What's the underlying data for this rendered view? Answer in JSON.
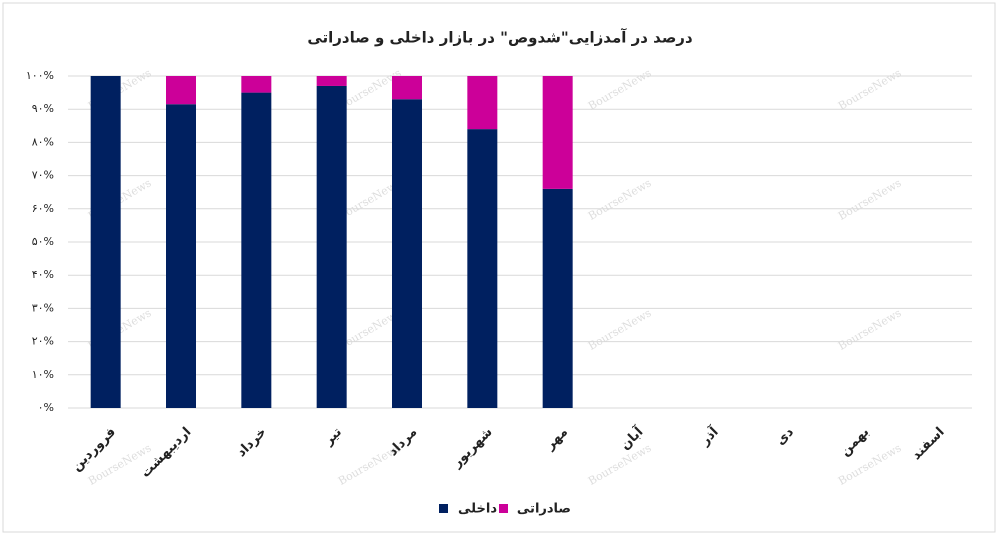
{
  "chart_data": {
    "type": "stacked_bar",
    "title": "درصد در آمدزایی\"شدوص\" در بازار داخلی و صادراتی",
    "categories": [
      "فروردین",
      "اردیبهشت",
      "خرداد",
      "تیر",
      "مرداد",
      "شهریور",
      "مهر",
      "آبان",
      "آذر",
      "دی",
      "بهمن",
      "اسفند"
    ],
    "series": [
      {
        "name": "داخلی",
        "color": "#002060",
        "values": [
          100,
          91.5,
          95,
          97,
          93,
          84,
          66,
          null,
          null,
          null,
          null,
          null
        ]
      },
      {
        "name": "صادراتی",
        "color": "#cc0099",
        "values": [
          0,
          8.5,
          5,
          3,
          7,
          16,
          34,
          null,
          null,
          null,
          null,
          null
        ]
      }
    ],
    "ylim": [
      0,
      100
    ],
    "yticks": [
      {
        "value": 0,
        "label": "۰%"
      },
      {
        "value": 10,
        "label": "۱۰%"
      },
      {
        "value": 20,
        "label": "۲۰%"
      },
      {
        "value": 30,
        "label": "۳۰%"
      },
      {
        "value": 40,
        "label": "۴۰%"
      },
      {
        "value": 50,
        "label": "۵۰%"
      },
      {
        "value": 60,
        "label": "۶۰%"
      },
      {
        "value": 70,
        "label": "۷۰%"
      },
      {
        "value": 80,
        "label": "۸۰%"
      },
      {
        "value": 90,
        "label": "۹۰%"
      },
      {
        "value": 100,
        "label": "۱۰۰%"
      }
    ],
    "grid": true,
    "legend": "bottom",
    "watermark": "BourseNews"
  }
}
